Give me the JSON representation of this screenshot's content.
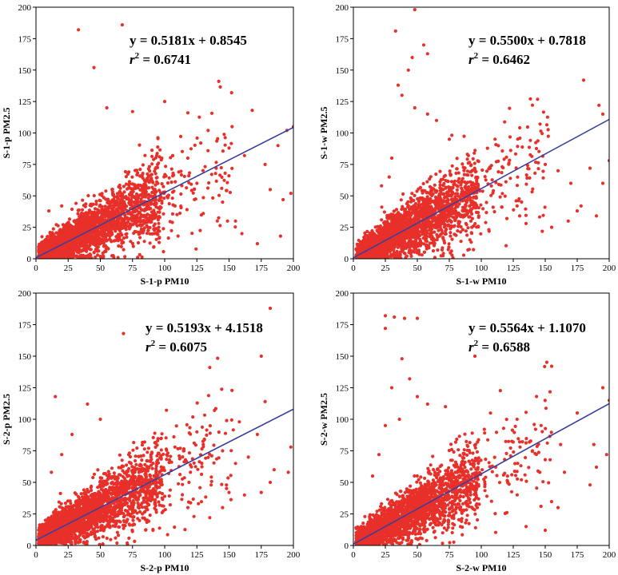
{
  "chart_data": [
    {
      "type": "scatter",
      "xlabel": "S-1-p PM10",
      "ylabel": "S-1-p PM2.5",
      "xlim": [
        0,
        200
      ],
      "ylim": [
        0,
        200
      ],
      "xticks": [
        "0",
        "25",
        "50",
        "75",
        "100",
        "125",
        "150",
        "175",
        "200"
      ],
      "yticks": [
        "0",
        "25",
        "50",
        "75",
        "100",
        "125",
        "150",
        "175",
        "200"
      ],
      "equation": "y = 0.5181x + 0.8545",
      "r2_label": "r",
      "r2_sup": "2",
      "r2_value": " = 0.6741",
      "fit": {
        "slope": 0.5181,
        "intercept": 0.8545
      },
      "point_color": "#e8302a",
      "line_color": "#3a3f9e",
      "grid": false,
      "outliers": [
        [
          67,
          186
        ],
        [
          33,
          182
        ],
        [
          45,
          152
        ],
        [
          55,
          120
        ],
        [
          100,
          125
        ],
        [
          75,
          117
        ],
        [
          142,
          141
        ],
        [
          152,
          132
        ],
        [
          118,
          116
        ],
        [
          168,
          118
        ],
        [
          200,
          105
        ],
        [
          188,
          90
        ],
        [
          195,
          102
        ],
        [
          150,
          88
        ],
        [
          178,
          75
        ],
        [
          162,
          82
        ],
        [
          140,
          72
        ],
        [
          125,
          60
        ],
        [
          192,
          47
        ],
        [
          182,
          55
        ],
        [
          190,
          18
        ],
        [
          172,
          12
        ],
        [
          160,
          20
        ],
        [
          198,
          52
        ],
        [
          108,
          42
        ],
        [
          130,
          36
        ],
        [
          145,
          45
        ],
        [
          85,
          30
        ],
        [
          20,
          42
        ],
        [
          10,
          38
        ],
        [
          155,
          30
        ],
        [
          128,
          92
        ]
      ]
    },
    {
      "type": "scatter",
      "xlabel": "S-1-w PM10",
      "ylabel": "S-1-w PM2.5",
      "xlim": [
        0,
        200
      ],
      "ylim": [
        0,
        200
      ],
      "xticks": [
        "0",
        "25",
        "50",
        "75",
        "100",
        "125",
        "150",
        "175",
        "200"
      ],
      "yticks": [
        "0",
        "25",
        "50",
        "75",
        "100",
        "125",
        "150",
        "175",
        "200"
      ],
      "equation": "y = 0.5500x + 0.7818",
      "r2_label": "r",
      "r2_sup": "2",
      "r2_value": " = 0.6462",
      "fit": {
        "slope": 0.55,
        "intercept": 0.7818
      },
      "point_color": "#e8302a",
      "line_color": "#3a3f9e",
      "grid": false,
      "outliers": [
        [
          48,
          198
        ],
        [
          33,
          181
        ],
        [
          55,
          170
        ],
        [
          58,
          163
        ],
        [
          46,
          160
        ],
        [
          43,
          150
        ],
        [
          35,
          138
        ],
        [
          38,
          130
        ],
        [
          48,
          120
        ],
        [
          58,
          115
        ],
        [
          65,
          110
        ],
        [
          75,
          95
        ],
        [
          180,
          142
        ],
        [
          192,
          122
        ],
        [
          195,
          115
        ],
        [
          200,
          78
        ],
        [
          185,
          72
        ],
        [
          170,
          60
        ],
        [
          178,
          42
        ],
        [
          190,
          34
        ],
        [
          195,
          60
        ],
        [
          160,
          70
        ],
        [
          150,
          75
        ],
        [
          142,
          68
        ],
        [
          128,
          42
        ],
        [
          120,
          32
        ],
        [
          135,
          28
        ],
        [
          155,
          25
        ],
        [
          168,
          30
        ],
        [
          175,
          38
        ],
        [
          22,
          58
        ],
        [
          28,
          65
        ],
        [
          72,
          22
        ],
        [
          30,
          80
        ],
        [
          98,
          34
        ],
        [
          88,
          28
        ]
      ]
    },
    {
      "type": "scatter",
      "xlabel": "S-2-p PM10",
      "ylabel": "S-2-p PM2.5",
      "xlim": [
        0,
        200
      ],
      "ylim": [
        0,
        200
      ],
      "xticks": [
        "0",
        "25",
        "50",
        "75",
        "100",
        "125",
        "150",
        "175",
        "200"
      ],
      "yticks": [
        "0",
        "25",
        "50",
        "75",
        "100",
        "125",
        "150",
        "175",
        "200"
      ],
      "equation": "y = 0.5193x + 4.1518",
      "r2_label": "r",
      "r2_sup": "2",
      "r2_value": " = 0.6075",
      "fit": {
        "slope": 0.5193,
        "intercept": 4.1518
      },
      "point_color": "#e8302a",
      "line_color": "#3a3f9e",
      "grid": false,
      "outliers": [
        [
          182,
          188
        ],
        [
          68,
          168
        ],
        [
          135,
          141
        ],
        [
          175,
          150
        ],
        [
          15,
          118
        ],
        [
          40,
          112
        ],
        [
          50,
          100
        ],
        [
          178,
          114
        ],
        [
          158,
          98
        ],
        [
          125,
          90
        ],
        [
          130,
          80
        ],
        [
          145,
          75
        ],
        [
          155,
          65
        ],
        [
          185,
          60
        ],
        [
          196,
          58
        ],
        [
          182,
          50
        ],
        [
          175,
          42
        ],
        [
          162,
          40
        ],
        [
          150,
          42
        ],
        [
          198,
          78
        ],
        [
          172,
          88
        ],
        [
          165,
          70
        ],
        [
          20,
          72
        ],
        [
          12,
          58
        ],
        [
          28,
          88
        ],
        [
          108,
          78
        ],
        [
          118,
          30
        ],
        [
          98,
          26
        ],
        [
          135,
          22
        ],
        [
          145,
          30
        ],
        [
          148,
          48
        ],
        [
          120,
          58
        ]
      ]
    },
    {
      "type": "scatter",
      "xlabel": "S-2-w PM10",
      "ylabel": "S-2-w PM2.5",
      "xlim": [
        0,
        200
      ],
      "ylim": [
        0,
        200
      ],
      "xticks": [
        "0",
        "25",
        "50",
        "75",
        "100",
        "125",
        "150",
        "175",
        "200"
      ],
      "yticks": [
        "0",
        "25",
        "50",
        "75",
        "100",
        "125",
        "150",
        "175",
        "200"
      ],
      "equation": "y = 0.5564x + 1.1070",
      "r2_label": "r",
      "r2_sup": "2",
      "r2_value": " = 0.6588",
      "fit": {
        "slope": 0.5564,
        "intercept": 1.107
      },
      "point_color": "#e8302a",
      "line_color": "#3a3f9e",
      "grid": false,
      "outliers": [
        [
          25,
          182
        ],
        [
          32,
          181
        ],
        [
          40,
          180
        ],
        [
          50,
          180
        ],
        [
          25,
          172
        ],
        [
          38,
          148
        ],
        [
          44,
          132
        ],
        [
          95,
          150
        ],
        [
          155,
          142
        ],
        [
          195,
          125
        ],
        [
          30,
          125
        ],
        [
          50,
          118
        ],
        [
          58,
          112
        ],
        [
          72,
          110
        ],
        [
          128,
          100
        ],
        [
          175,
          105
        ],
        [
          200,
          115
        ],
        [
          198,
          72
        ],
        [
          190,
          62
        ],
        [
          185,
          48
        ],
        [
          165,
          58
        ],
        [
          150,
          68
        ],
        [
          140,
          75
        ],
        [
          130,
          82
        ],
        [
          162,
          80
        ],
        [
          188,
          80
        ],
        [
          20,
          72
        ],
        [
          15,
          55
        ],
        [
          108,
          35
        ],
        [
          120,
          26
        ],
        [
          135,
          15
        ],
        [
          150,
          12
        ],
        [
          160,
          30
        ],
        [
          25,
          95
        ],
        [
          36,
          100
        ]
      ]
    }
  ]
}
